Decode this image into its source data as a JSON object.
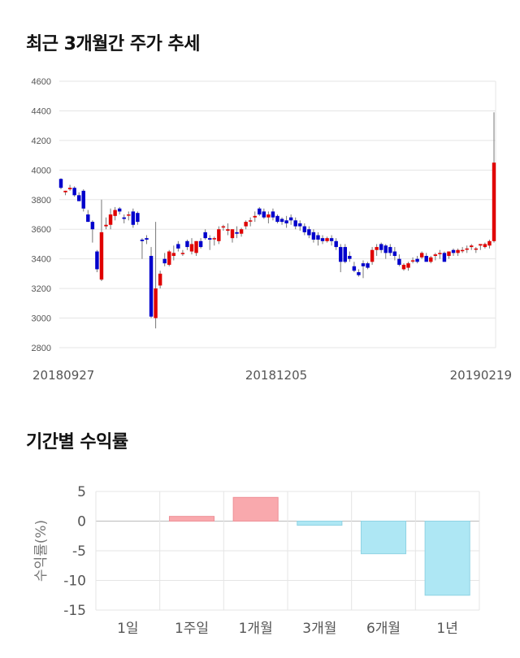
{
  "titles": {
    "price": "최근 3개월간 주가 추세",
    "returns": "기간별 수익률"
  },
  "colors": {
    "up": "#e00000",
    "down": "#0000cc",
    "grid": "#e5e5e5",
    "positive_bar": "#f9a9ad",
    "negative_bar": "#aee7f4"
  },
  "chart_data": [
    {
      "type": "candlestick",
      "title": "",
      "ylim": [
        2800,
        4600
      ],
      "yticks": [
        2800,
        3000,
        3200,
        3400,
        3600,
        3800,
        4000,
        4200,
        4400,
        4600
      ],
      "xtick_labels": [
        "20180927",
        "20181205",
        "20190219"
      ],
      "candles": [
        [
          3940,
          3945,
          3870,
          3880
        ],
        [
          3850,
          3860,
          3830,
          3860
        ],
        [
          3870,
          3900,
          3860,
          3880
        ],
        [
          3880,
          3890,
          3820,
          3830
        ],
        [
          3830,
          3850,
          3790,
          3790
        ],
        [
          3860,
          3870,
          3720,
          3740
        ],
        [
          3700,
          3730,
          3650,
          3650
        ],
        [
          3650,
          3660,
          3510,
          3600
        ],
        [
          3450,
          3460,
          3310,
          3330
        ],
        [
          3260,
          3800,
          3250,
          3580
        ],
        [
          3620,
          3680,
          3600,
          3630
        ],
        [
          3630,
          3740,
          3600,
          3700
        ],
        [
          3690,
          3750,
          3660,
          3730
        ],
        [
          3740,
          3750,
          3700,
          3720
        ],
        [
          3680,
          3700,
          3640,
          3670
        ],
        [
          3700,
          3720,
          3660,
          3700
        ],
        [
          3720,
          3740,
          3610,
          3630
        ],
        [
          3710,
          3720,
          3630,
          3650
        ],
        [
          3530,
          3540,
          3400,
          3520
        ],
        [
          3540,
          3560,
          3500,
          3530
        ],
        [
          3420,
          3480,
          3000,
          3010
        ],
        [
          3000,
          3650,
          2930,
          3200
        ],
        [
          3220,
          3320,
          3200,
          3300
        ],
        [
          3400,
          3440,
          3350,
          3370
        ],
        [
          3360,
          3460,
          3350,
          3450
        ],
        [
          3420,
          3490,
          3390,
          3440
        ],
        [
          3500,
          3520,
          3450,
          3470
        ],
        [
          3440,
          3460,
          3420,
          3440
        ],
        [
          3520,
          3530,
          3460,
          3480
        ],
        [
          3450,
          3540,
          3430,
          3500
        ],
        [
          3440,
          3520,
          3420,
          3520
        ],
        [
          3520,
          3540,
          3470,
          3480
        ],
        [
          3580,
          3600,
          3530,
          3540
        ],
        [
          3540,
          3560,
          3460,
          3530
        ],
        [
          3540,
          3550,
          3490,
          3540
        ],
        [
          3520,
          3620,
          3500,
          3600
        ],
        [
          3620,
          3630,
          3590,
          3620
        ],
        [
          3590,
          3640,
          3560,
          3600
        ],
        [
          3540,
          3600,
          3510,
          3600
        ],
        [
          3580,
          3620,
          3540,
          3570
        ],
        [
          3570,
          3610,
          3550,
          3600
        ],
        [
          3620,
          3660,
          3600,
          3650
        ],
        [
          3660,
          3680,
          3620,
          3660
        ],
        [
          3680,
          3720,
          3650,
          3690
        ],
        [
          3740,
          3750,
          3690,
          3700
        ],
        [
          3720,
          3740,
          3670,
          3680
        ],
        [
          3680,
          3720,
          3640,
          3700
        ],
        [
          3720,
          3740,
          3660,
          3680
        ],
        [
          3690,
          3700,
          3640,
          3650
        ],
        [
          3670,
          3680,
          3630,
          3650
        ],
        [
          3660,
          3690,
          3610,
          3640
        ],
        [
          3680,
          3700,
          3630,
          3660
        ],
        [
          3660,
          3680,
          3600,
          3620
        ],
        [
          3640,
          3660,
          3590,
          3620
        ],
        [
          3620,
          3640,
          3560,
          3580
        ],
        [
          3600,
          3620,
          3540,
          3560
        ],
        [
          3580,
          3600,
          3510,
          3530
        ],
        [
          3560,
          3580,
          3490,
          3530
        ],
        [
          3540,
          3560,
          3500,
          3520
        ],
        [
          3520,
          3550,
          3510,
          3540
        ],
        [
          3540,
          3560,
          3490,
          3520
        ],
        [
          3520,
          3540,
          3460,
          3480
        ],
        [
          3480,
          3500,
          3310,
          3380
        ],
        [
          3480,
          3500,
          3370,
          3380
        ],
        [
          3420,
          3450,
          3380,
          3400
        ],
        [
          3350,
          3380,
          3310,
          3320
        ],
        [
          3310,
          3330,
          3280,
          3290
        ],
        [
          3370,
          3390,
          3270,
          3350
        ],
        [
          3370,
          3380,
          3330,
          3340
        ],
        [
          3380,
          3480,
          3360,
          3460
        ],
        [
          3460,
          3500,
          3420,
          3480
        ],
        [
          3500,
          3510,
          3440,
          3460
        ],
        [
          3490,
          3500,
          3400,
          3440
        ],
        [
          3480,
          3500,
          3420,
          3440
        ],
        [
          3450,
          3480,
          3390,
          3420
        ],
        [
          3400,
          3430,
          3350,
          3360
        ],
        [
          3330,
          3370,
          3320,
          3360
        ],
        [
          3340,
          3380,
          3320,
          3370
        ],
        [
          3390,
          3410,
          3370,
          3390
        ],
        [
          3400,
          3420,
          3370,
          3380
        ],
        [
          3410,
          3450,
          3400,
          3440
        ],
        [
          3420,
          3440,
          3390,
          3380
        ],
        [
          3380,
          3420,
          3370,
          3410
        ],
        [
          3420,
          3440,
          3390,
          3430
        ],
        [
          3440,
          3460,
          3400,
          3440
        ],
        [
          3440,
          3450,
          3380,
          3380
        ],
        [
          3420,
          3450,
          3400,
          3450
        ],
        [
          3460,
          3470,
          3420,
          3440
        ],
        [
          3440,
          3470,
          3420,
          3460
        ],
        [
          3460,
          3480,
          3440,
          3460
        ],
        [
          3470,
          3490,
          3440,
          3470
        ],
        [
          3480,
          3500,
          3460,
          3490
        ],
        [
          3470,
          3480,
          3440,
          3470
        ],
        [
          3490,
          3500,
          3460,
          3500
        ],
        [
          3480,
          3510,
          3470,
          3500
        ],
        [
          3490,
          3530,
          3470,
          3520
        ],
        [
          3520,
          4390,
          3510,
          4050
        ]
      ]
    },
    {
      "type": "bar",
      "title": "",
      "categories": [
        "1일",
        "1주일",
        "1개월",
        "3개월",
        "6개월",
        "1년"
      ],
      "values": [
        0.0,
        0.8,
        4.0,
        -0.7,
        -5.5,
        -12.5
      ],
      "ylabel": "수익률(%)",
      "ylim": [
        -15,
        5
      ],
      "yticks": [
        5,
        0,
        -5,
        -10,
        -15
      ]
    }
  ]
}
